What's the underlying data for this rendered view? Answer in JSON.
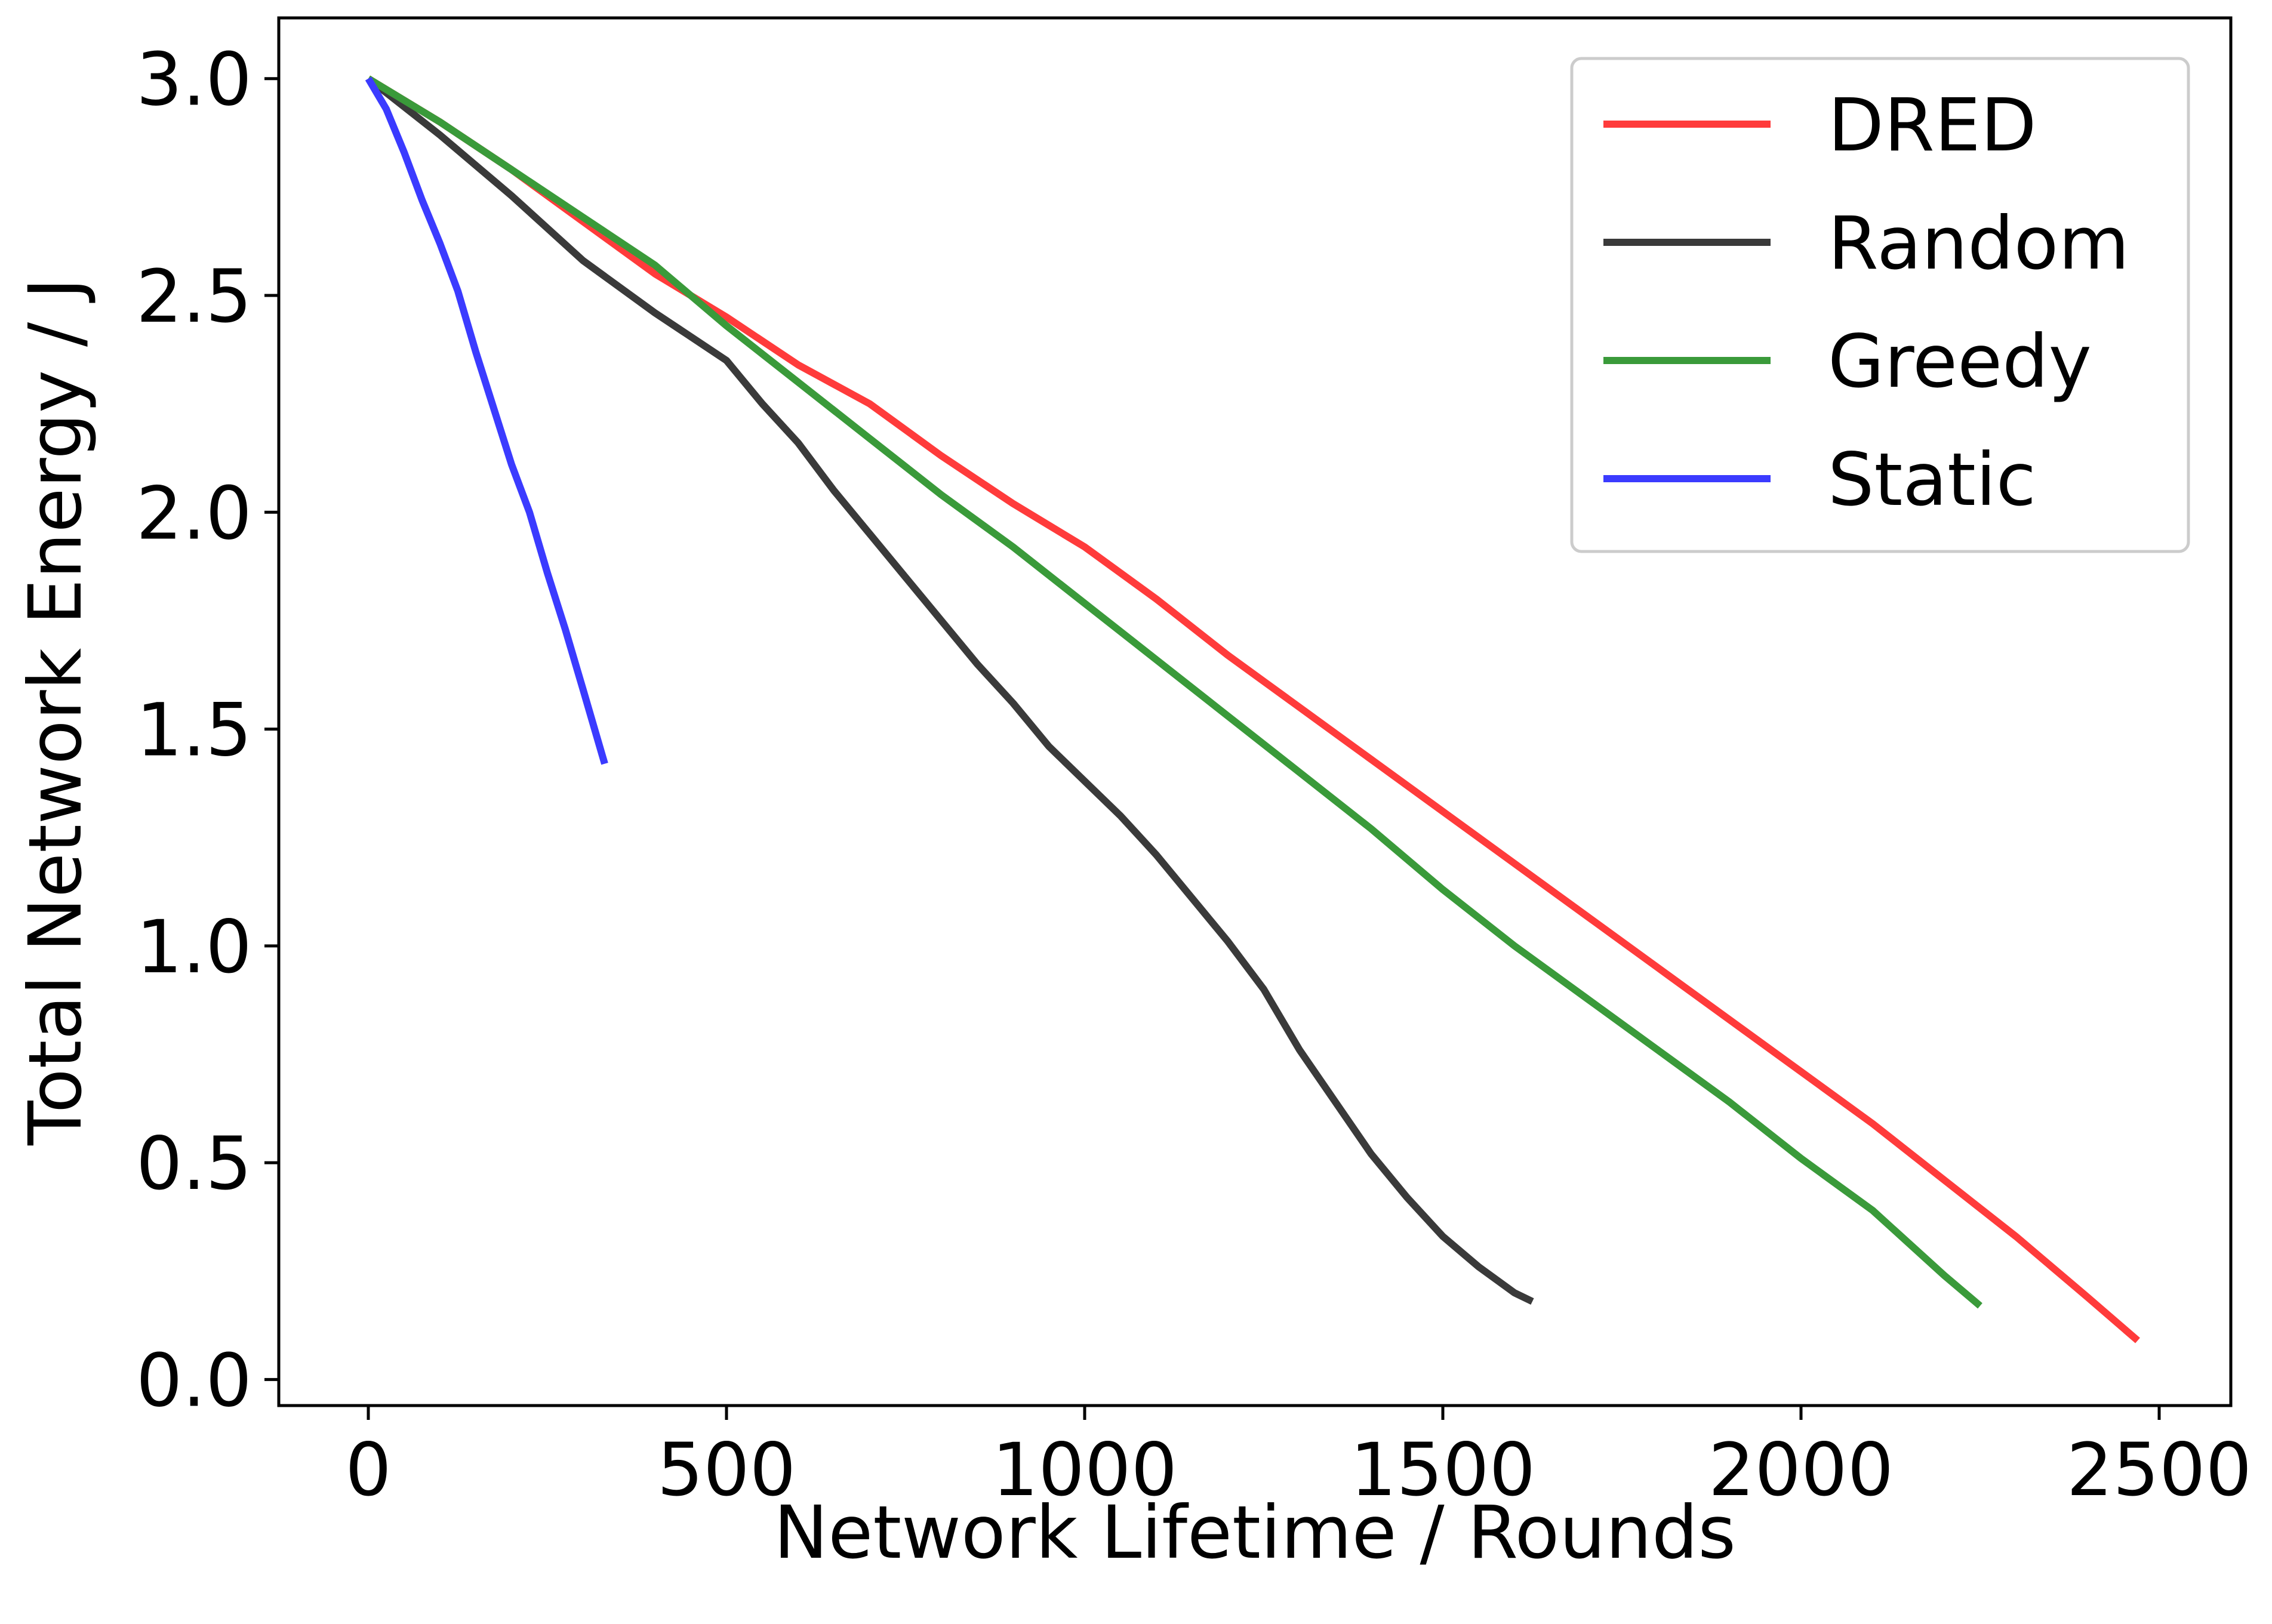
{
  "chart_data": {
    "type": "line",
    "title": "",
    "xlabel": "Network Lifetime / Rounds",
    "ylabel": "Total Network Energy / J",
    "xlim": [
      -125,
      2600
    ],
    "ylim": [
      -0.06,
      3.14
    ],
    "xticks": [
      0,
      500,
      1000,
      1500,
      2000,
      2500
    ],
    "xtick_labels": [
      "0",
      "500",
      "1000",
      "1500",
      "2000",
      "2500"
    ],
    "yticks": [
      0.0,
      0.5,
      1.0,
      1.5,
      2.0,
      2.5,
      3.0
    ],
    "ytick_labels": [
      "0.0",
      "0.5",
      "1.0",
      "1.5",
      "2.0",
      "2.5",
      "3.0"
    ],
    "grid": false,
    "legend_position": "top-right",
    "series": [
      {
        "name": "DRED",
        "color": "#ff3b3b",
        "x": [
          0,
          100,
          200,
          300,
          400,
          500,
          600,
          700,
          800,
          900,
          1000,
          1100,
          1200,
          1300,
          1400,
          1500,
          1600,
          1700,
          1800,
          1900,
          2000,
          2100,
          2200,
          2300,
          2400,
          2470
        ],
        "y": [
          3.0,
          2.9,
          2.79,
          2.67,
          2.55,
          2.45,
          2.34,
          2.25,
          2.13,
          2.02,
          1.92,
          1.8,
          1.67,
          1.55,
          1.43,
          1.31,
          1.19,
          1.07,
          0.95,
          0.83,
          0.71,
          0.59,
          0.46,
          0.33,
          0.19,
          0.09
        ]
      },
      {
        "name": "Random",
        "color": "#3a3a3a",
        "x": [
          0,
          100,
          200,
          300,
          400,
          500,
          550,
          600,
          650,
          700,
          750,
          800,
          850,
          900,
          950,
          1000,
          1050,
          1100,
          1150,
          1200,
          1250,
          1300,
          1350,
          1400,
          1450,
          1500,
          1550,
          1600,
          1625
        ],
        "y": [
          3.0,
          2.87,
          2.73,
          2.58,
          2.46,
          2.35,
          2.25,
          2.16,
          2.05,
          1.95,
          1.85,
          1.75,
          1.65,
          1.56,
          1.46,
          1.38,
          1.3,
          1.21,
          1.11,
          1.01,
          0.9,
          0.76,
          0.64,
          0.52,
          0.42,
          0.33,
          0.26,
          0.2,
          0.18
        ]
      },
      {
        "name": "Greedy",
        "color": "#3a9a3a",
        "x": [
          0,
          100,
          200,
          300,
          400,
          500,
          600,
          700,
          800,
          900,
          1000,
          1100,
          1200,
          1300,
          1400,
          1500,
          1600,
          1700,
          1800,
          1900,
          2000,
          2100,
          2200,
          2250
        ],
        "y": [
          3.0,
          2.9,
          2.79,
          2.68,
          2.57,
          2.43,
          2.3,
          2.17,
          2.04,
          1.92,
          1.79,
          1.66,
          1.53,
          1.4,
          1.27,
          1.13,
          1.0,
          0.88,
          0.76,
          0.64,
          0.51,
          0.39,
          0.24,
          0.17
        ]
      },
      {
        "name": "Static",
        "color": "#3b3bff",
        "x": [
          0,
          25,
          50,
          75,
          100,
          125,
          150,
          175,
          200,
          225,
          250,
          275,
          300,
          330
        ],
        "y": [
          3.0,
          2.93,
          2.83,
          2.72,
          2.62,
          2.51,
          2.37,
          2.24,
          2.11,
          2.0,
          1.86,
          1.73,
          1.59,
          1.42
        ]
      }
    ]
  }
}
